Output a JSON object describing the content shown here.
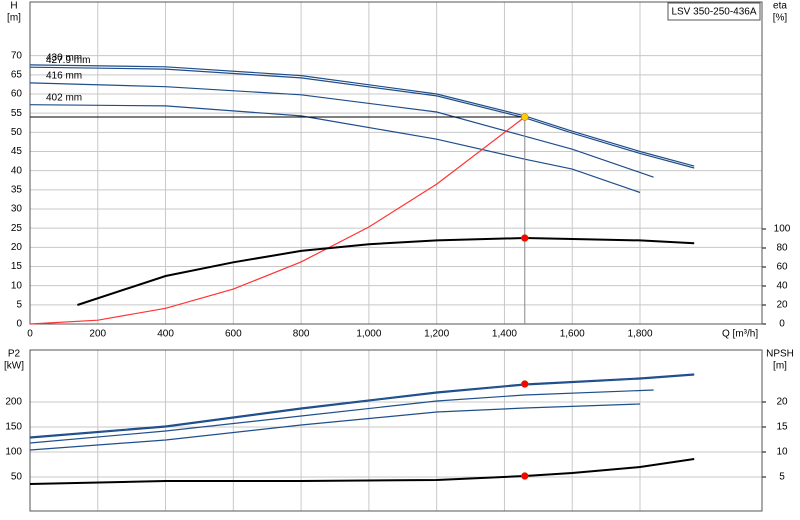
{
  "chart_data": [
    {
      "type": "line",
      "legend_box": "LSV 350-250-436A",
      "ylabel": [
        "H",
        "[m]"
      ],
      "y2label": [
        "eta",
        "[%]"
      ],
      "xlabel": "Q [m³/h]",
      "xlim": [
        0,
        2160
      ],
      "ylim": [
        0,
        84
      ],
      "y2lim": [
        0,
        339
      ],
      "show_xtick_labels": true,
      "grid": true,
      "xticks": [
        0,
        200,
        400,
        600,
        800,
        {
          "value": 1000,
          "label": "1,000"
        },
        {
          "value": 1200,
          "label": "1,200"
        },
        {
          "value": 1400,
          "label": "1,400"
        },
        {
          "value": 1600,
          "label": "1,600"
        },
        {
          "value": 1800,
          "label": "1,800"
        }
      ],
      "yticks": [
        0,
        5,
        10,
        15,
        20,
        25,
        30,
        35,
        40,
        45,
        50,
        55,
        60,
        65,
        70
      ],
      "y2ticks": [
        0,
        20,
        40,
        60,
        80,
        100
      ],
      "series": [
        {
          "name": "430 mm",
          "color": "#1f4e8c",
          "x": [
            0,
            400,
            800,
            1200,
            1460,
            1600,
            1800,
            1960
          ],
          "values": [
            67.6,
            67.1,
            64.8,
            60,
            54.3,
            50.3,
            45,
            41.2
          ]
        },
        {
          "name": "427.9 mm",
          "color": "#1f4e8c",
          "x": [
            0,
            400,
            800,
            1200,
            1460,
            1600,
            1800,
            1960
          ],
          "values": [
            67,
            66.5,
            64.2,
            59.5,
            53.8,
            49.8,
            44.5,
            40.7
          ]
        },
        {
          "name": "416 mm",
          "color": "#1f4e8c",
          "x": [
            0,
            400,
            800,
            1200,
            1460,
            1600,
            1840
          ],
          "values": [
            62.9,
            61.9,
            59.8,
            55.3,
            49,
            45.6,
            38.3
          ]
        },
        {
          "name": "402 mm",
          "color": "#1f4e8c",
          "x": [
            0,
            400,
            800,
            1200,
            1460,
            1600,
            1800
          ],
          "values": [
            57.2,
            56.9,
            54.3,
            48.2,
            43,
            40.4,
            34.3
          ]
        },
        {
          "color": "#ff3333",
          "x": [
            0,
            200,
            400,
            600,
            800,
            1000,
            1200,
            1460
          ],
          "values": [
            0,
            1,
            4.1,
            9.1,
            16.2,
            25.3,
            36.5,
            54
          ]
        },
        {
          "color": "#000000",
          "axis": "y2",
          "width": 2,
          "x": [
            140,
            400,
            600,
            800,
            1000,
            1200,
            1460,
            1600,
            1800,
            1960
          ],
          "values": [
            20,
            50.5,
            65,
            77,
            84,
            88,
            90.5,
            89.5,
            88,
            85
          ]
        }
      ],
      "points": [
        {
          "x": 1460,
          "y": 54,
          "color": "#ffcc00",
          "guides": true
        },
        {
          "x": 1460,
          "y": 90.5,
          "axis": "y2",
          "color": "#ff0000"
        }
      ]
    },
    {
      "type": "line",
      "ylabel": [
        "P2",
        "[kW]"
      ],
      "y2label": [
        "NPSH",
        "[m]"
      ],
      "xlim": [
        0,
        2160
      ],
      "ylim": [
        -18,
        304
      ],
      "y2lim": [
        -1.8,
        30.4
      ],
      "show_xtick_labels": false,
      "grid": true,
      "xticks": [
        0,
        200,
        400,
        600,
        800,
        1000,
        1200,
        1400,
        1600,
        1800
      ],
      "yticks": [
        50,
        100,
        150,
        200
      ],
      "y2ticks": [
        5,
        10,
        15,
        20
      ],
      "series": [
        {
          "color": "#1f4e8c",
          "x": [
            0,
            400,
            800,
            1200,
            1460,
            1800,
            1960
          ],
          "values": [
            130,
            152,
            188,
            220,
            236,
            248,
            256
          ]
        },
        {
          "color": "#1f4e8c",
          "x": [
            0,
            400,
            800,
            1200,
            1460,
            1800,
            1960
          ],
          "values": [
            128,
            150,
            186,
            218,
            234,
            246,
            254
          ]
        },
        {
          "color": "#1f4e8c",
          "x": [
            0,
            400,
            800,
            1200,
            1460,
            1840
          ],
          "values": [
            118,
            142,
            172,
            202,
            214,
            224
          ]
        },
        {
          "color": "#1f4e8c",
          "x": [
            0,
            400,
            800,
            1200,
            1460,
            1800
          ],
          "values": [
            104,
            124,
            154,
            180,
            188,
            196
          ]
        },
        {
          "color": "#000000",
          "axis": "y2",
          "width": 2,
          "x": [
            0,
            400,
            800,
            1200,
            1460,
            1600,
            1800,
            1960
          ],
          "values": [
            3.6,
            4.2,
            4.2,
            4.4,
            5.2,
            5.8,
            7,
            8.6
          ]
        }
      ],
      "points": [
        {
          "x": 1460,
          "y": 236,
          "color": "#ff0000"
        },
        {
          "x": 1460,
          "y": 5.2,
          "axis": "y2",
          "color": "#ff0000"
        }
      ]
    }
  ]
}
